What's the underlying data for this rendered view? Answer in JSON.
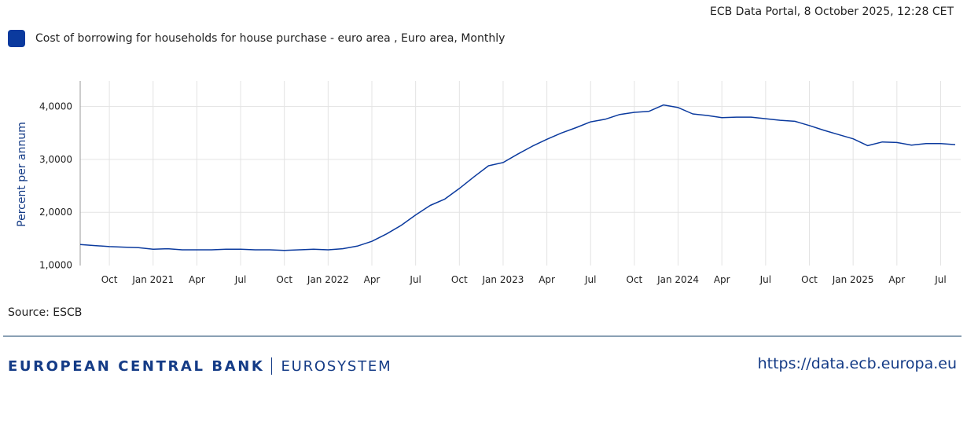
{
  "header": {
    "stamp": "ECB Data Portal, 8 October 2025, 12:28 CET"
  },
  "legend": {
    "label": "Cost of borrowing for households for house purchase - euro area , Euro area, Monthly"
  },
  "source": "Source: ESCB",
  "footer": {
    "brand_main": "EUROPEAN CENTRAL BANK",
    "brand_sub": "EUROSYSTEM",
    "url": "https://data.ecb.europa.eu"
  },
  "colors": {
    "series": "#0b3a9e",
    "brand": "#143b86",
    "grid": "#e3e3e3"
  },
  "chart_data": {
    "type": "line",
    "title": "",
    "xlabel": "",
    "ylabel": "Percent per annum",
    "ylim": [
      1.0,
      4.5
    ],
    "yticks": [
      1.0,
      2.0,
      3.0,
      4.0
    ],
    "ytick_labels": [
      "1,0000",
      "2,0000",
      "3,0000",
      "4,0000"
    ],
    "xticks": [
      {
        "date": "2020-10",
        "label": "Oct"
      },
      {
        "date": "2021-01",
        "label": "Jan 2021"
      },
      {
        "date": "2021-04",
        "label": "Apr"
      },
      {
        "date": "2021-07",
        "label": "Jul"
      },
      {
        "date": "2021-10",
        "label": "Oct"
      },
      {
        "date": "2022-01",
        "label": "Jan 2022"
      },
      {
        "date": "2022-04",
        "label": "Apr"
      },
      {
        "date": "2022-07",
        "label": "Jul"
      },
      {
        "date": "2022-10",
        "label": "Oct"
      },
      {
        "date": "2023-01",
        "label": "Jan 2023"
      },
      {
        "date": "2023-04",
        "label": "Apr"
      },
      {
        "date": "2023-07",
        "label": "Jul"
      },
      {
        "date": "2023-10",
        "label": "Oct"
      },
      {
        "date": "2024-01",
        "label": "Jan 2024"
      },
      {
        "date": "2024-04",
        "label": "Apr"
      },
      {
        "date": "2024-07",
        "label": "Jul"
      },
      {
        "date": "2024-10",
        "label": "Oct"
      },
      {
        "date": "2025-01",
        "label": "Jan 2025"
      },
      {
        "date": "2025-04",
        "label": "Apr"
      },
      {
        "date": "2025-07",
        "label": "Jul"
      }
    ],
    "series": [
      {
        "name": "Cost of borrowing for households for house purchase - euro area , Euro area, Monthly",
        "x": [
          "2020-08",
          "2020-09",
          "2020-10",
          "2020-11",
          "2020-12",
          "2021-01",
          "2021-02",
          "2021-03",
          "2021-04",
          "2021-05",
          "2021-06",
          "2021-07",
          "2021-08",
          "2021-09",
          "2021-10",
          "2021-11",
          "2021-12",
          "2022-01",
          "2022-02",
          "2022-03",
          "2022-04",
          "2022-05",
          "2022-06",
          "2022-07",
          "2022-08",
          "2022-09",
          "2022-10",
          "2022-11",
          "2022-12",
          "2023-01",
          "2023-02",
          "2023-03",
          "2023-04",
          "2023-05",
          "2023-06",
          "2023-07",
          "2023-08",
          "2023-09",
          "2023-10",
          "2023-11",
          "2023-12",
          "2024-01",
          "2024-02",
          "2024-03",
          "2024-04",
          "2024-05",
          "2024-06",
          "2024-07",
          "2024-08",
          "2024-09",
          "2024-10",
          "2024-11",
          "2024-12",
          "2025-01",
          "2025-02",
          "2025-03",
          "2025-04",
          "2025-05",
          "2025-06",
          "2025-07",
          "2025-08"
        ],
        "values": [
          1.39,
          1.37,
          1.35,
          1.34,
          1.33,
          1.3,
          1.31,
          1.29,
          1.29,
          1.29,
          1.3,
          1.3,
          1.29,
          1.29,
          1.28,
          1.29,
          1.3,
          1.29,
          1.31,
          1.36,
          1.45,
          1.59,
          1.75,
          1.95,
          2.13,
          2.25,
          2.45,
          2.67,
          2.88,
          2.94,
          3.1,
          3.25,
          3.38,
          3.5,
          3.6,
          3.71,
          3.76,
          3.85,
          3.89,
          3.91,
          4.03,
          3.98,
          3.86,
          3.83,
          3.79,
          3.8,
          3.8,
          3.77,
          3.74,
          3.72,
          3.64,
          3.55,
          3.47,
          3.39,
          3.26,
          3.33,
          3.32,
          3.27,
          3.3,
          3.3,
          3.28
        ]
      }
    ]
  }
}
